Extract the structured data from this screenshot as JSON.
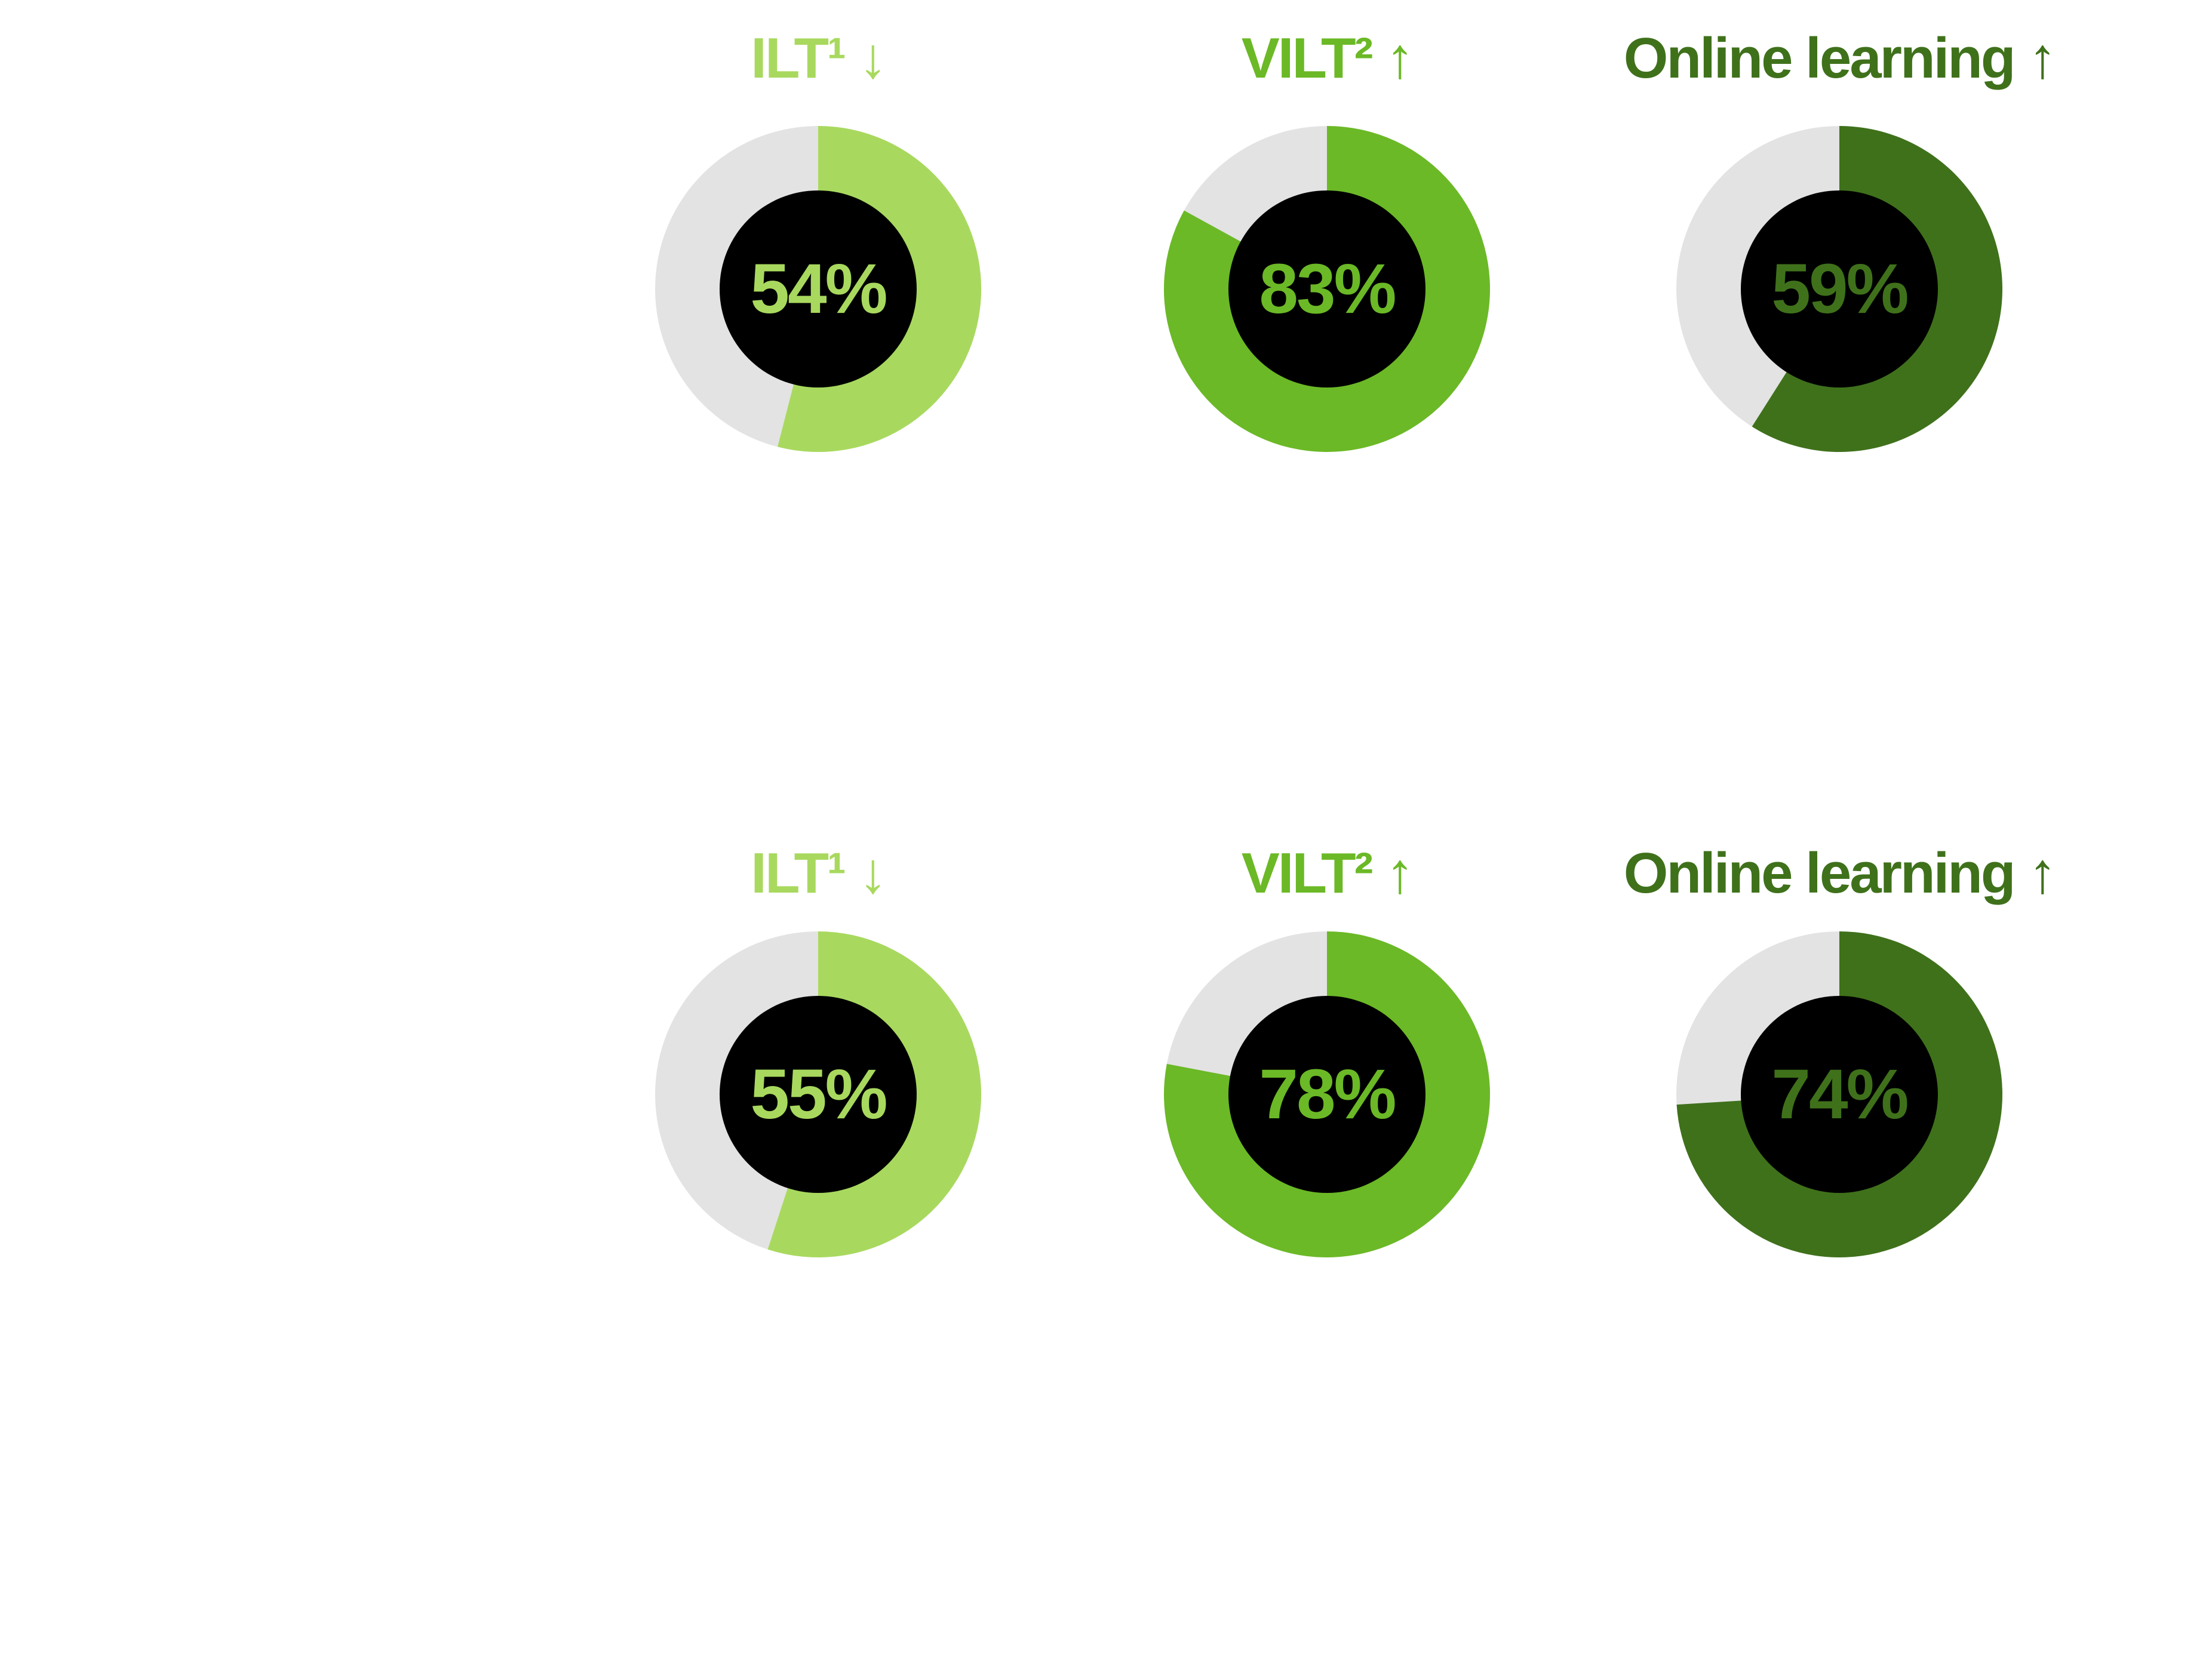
{
  "colors": {
    "background": "#ffffff",
    "track": "#e3e3e3",
    "hole": "#000000",
    "ilt": "#a8d95e",
    "vilt": "#6bb926",
    "online": "#3f711b"
  },
  "chart_data": [
    {
      "type": "donut",
      "title": "ILT¹ ↓",
      "label": "54%",
      "value": 54,
      "color_key": "ilt"
    },
    {
      "type": "donut",
      "title": "VILT² ↑",
      "label": "83%",
      "value": 83,
      "color_key": "vilt"
    },
    {
      "type": "donut",
      "title": "Online learning ↑",
      "label": "59%",
      "value": 59,
      "color_key": "online"
    },
    {
      "type": "donut",
      "title": "ILT¹ ↓",
      "label": "55%",
      "value": 55,
      "color_key": "ilt"
    },
    {
      "type": "donut",
      "title": "VILT² ↑",
      "label": "78%",
      "value": 78,
      "color_key": "vilt"
    },
    {
      "type": "donut",
      "title": "Online learning ↑",
      "label": "74%",
      "value": 74,
      "color_key": "online"
    }
  ]
}
